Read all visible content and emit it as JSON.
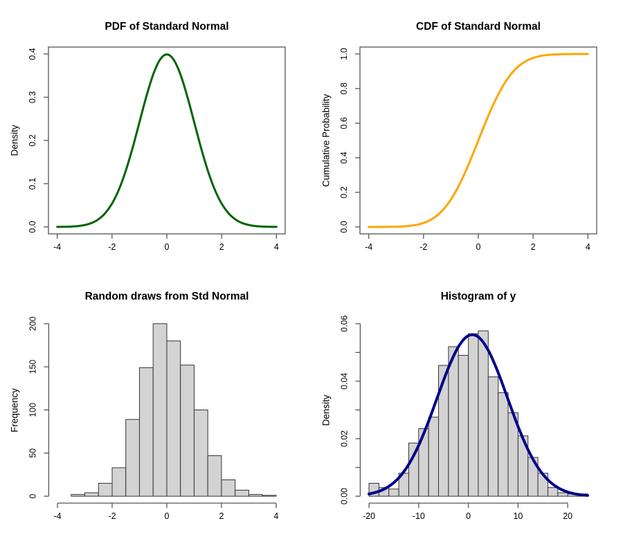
{
  "figure": {
    "layout": "2x2",
    "background": "#ffffff",
    "axis_color": "#555555",
    "text_color": "#000000"
  },
  "chart_data": [
    {
      "type": "line",
      "title": "PDF of Standard Normal",
      "xlabel": "",
      "ylabel": "Density",
      "frame": "box",
      "xlim": [
        -4,
        4
      ],
      "ylim": [
        0,
        0.4
      ],
      "xticks": {
        "values": [
          -4,
          -2,
          0,
          2,
          4
        ],
        "labels": [
          "-4",
          "-2",
          "0",
          "2",
          "4"
        ]
      },
      "yticks": {
        "values": [
          0,
          0.1,
          0.2,
          0.3,
          0.4
        ],
        "labels": [
          "0.0",
          "0.1",
          "0.2",
          "0.3",
          "0.4"
        ]
      },
      "series": [
        {
          "name": "pdf-curve",
          "color": "#006400",
          "width": 3,
          "x": [
            -4,
            -3.75,
            -3.5,
            -3.25,
            -3,
            -2.75,
            -2.5,
            -2.25,
            -2,
            -1.75,
            -1.5,
            -1.25,
            -1,
            -0.75,
            -0.5,
            -0.25,
            0,
            0.25,
            0.5,
            0.75,
            1,
            1.25,
            1.5,
            1.75,
            2,
            2.25,
            2.5,
            2.75,
            3,
            3.25,
            3.5,
            3.75,
            4
          ],
          "y": [
            0.00013,
            0.00035,
            0.00087,
            0.00203,
            0.00443,
            0.0091,
            0.01753,
            0.03174,
            0.05399,
            0.08628,
            0.12952,
            0.18265,
            0.24197,
            0.30114,
            0.35207,
            0.38667,
            0.39894,
            0.38667,
            0.35207,
            0.30114,
            0.24197,
            0.18265,
            0.12952,
            0.08628,
            0.05399,
            0.03174,
            0.01753,
            0.0091,
            0.00443,
            0.00203,
            0.00087,
            0.00035,
            0.00013
          ]
        }
      ]
    },
    {
      "type": "line",
      "title": "CDF of Standard Normal",
      "xlabel": "",
      "ylabel": "Cumulative Probability",
      "frame": "box",
      "xlim": [
        -4,
        4
      ],
      "ylim": [
        0,
        1
      ],
      "xticks": {
        "values": [
          -4,
          -2,
          0,
          2,
          4
        ],
        "labels": [
          "-4",
          "-2",
          "0",
          "2",
          "4"
        ]
      },
      "yticks": {
        "values": [
          0,
          0.2,
          0.4,
          0.6,
          0.8,
          1
        ],
        "labels": [
          "0.0",
          "0.2",
          "0.4",
          "0.6",
          "0.8",
          "1.0"
        ]
      },
      "series": [
        {
          "name": "cdf-curve",
          "color": "#FFA500",
          "width": 3,
          "x": [
            -4,
            -3.75,
            -3.5,
            -3.25,
            -3,
            -2.75,
            -2.5,
            -2.25,
            -2,
            -1.75,
            -1.5,
            -1.25,
            -1,
            -0.75,
            -0.5,
            -0.25,
            0,
            0.25,
            0.5,
            0.75,
            1,
            1.25,
            1.5,
            1.75,
            2,
            2.25,
            2.5,
            2.75,
            3,
            3.25,
            3.5,
            3.75,
            4
          ],
          "y": [
            3e-05,
            9e-05,
            0.00023,
            0.00058,
            0.00135,
            0.00298,
            0.00621,
            0.01222,
            0.02275,
            0.04006,
            0.06681,
            0.10565,
            0.15866,
            0.22663,
            0.30854,
            0.40129,
            0.5,
            0.59871,
            0.69146,
            0.77337,
            0.84134,
            0.89435,
            0.93319,
            0.95994,
            0.97725,
            0.98778,
            0.99379,
            0.99702,
            0.99865,
            0.99942,
            0.99977,
            0.99991,
            0.99997
          ]
        }
      ]
    },
    {
      "type": "bar",
      "title": "Random draws from Std Normal",
      "xlabel": "",
      "ylabel": "Frequency",
      "frame": "axes",
      "xlim": [
        -4,
        4
      ],
      "ylim": [
        0,
        200
      ],
      "xticks": {
        "values": [
          -4,
          -2,
          0,
          2,
          4
        ],
        "labels": [
          "-4",
          "-2",
          "0",
          "2",
          "4"
        ]
      },
      "yticks": {
        "values": [
          0,
          50,
          100,
          150,
          200
        ],
        "labels": [
          "0",
          "50",
          "100",
          "150",
          "200"
        ]
      },
      "bars": {
        "fill": "#d3d3d3",
        "stroke": "#333333",
        "breaks": [
          -4,
          -3.5,
          -3,
          -2.5,
          -2,
          -1.5,
          -1,
          -0.5,
          0,
          0.5,
          1,
          1.5,
          2,
          2.5,
          3,
          3.5,
          4
        ],
        "values": [
          0,
          2,
          4,
          15,
          33,
          89,
          149,
          200,
          180,
          152,
          100,
          47,
          19,
          7,
          2,
          1
        ]
      },
      "series": []
    },
    {
      "type": "bar",
      "title": "Histogram of y",
      "xlabel": "",
      "ylabel": "Density",
      "frame": "axes",
      "xlim": [
        -20,
        24
      ],
      "ylim": [
        0,
        0.06
      ],
      "xticks": {
        "values": [
          -20,
          -10,
          0,
          10,
          20
        ],
        "labels": [
          "-20",
          "-10",
          "0",
          "10",
          "20"
        ]
      },
      "yticks": {
        "values": [
          0,
          0.01,
          0.02,
          0.03,
          0.04,
          0.05,
          0.06
        ],
        "labels": [
          "0.00",
          "",
          "0.02",
          "",
          "0.04",
          "",
          "0.06"
        ]
      },
      "bars": {
        "fill": "#d3d3d3",
        "stroke": "#333333",
        "breaks": [
          -20,
          -18,
          -16,
          -14,
          -12,
          -10,
          -8,
          -6,
          -4,
          -2,
          0,
          2,
          4,
          6,
          8,
          10,
          12,
          14,
          16,
          18,
          20,
          22,
          24
        ],
        "values": [
          0.0045,
          0.003,
          0.0025,
          0.008,
          0.0185,
          0.0235,
          0.0275,
          0.0455,
          0.052,
          0.049,
          0.0565,
          0.0575,
          0.0415,
          0.036,
          0.029,
          0.021,
          0.0135,
          0.008,
          0.003,
          0.0012,
          0.0008,
          0.0008
        ]
      },
      "series": [
        {
          "name": "normal-density-curve",
          "color": "#00008B",
          "width": 4,
          "x": [
            -20,
            -18,
            -16,
            -14,
            -12,
            -10,
            -8,
            -6,
            -4,
            -2,
            0,
            2,
            4,
            6,
            8,
            10,
            12,
            14,
            16,
            18,
            20,
            22,
            24
          ],
          "y": [
            0.00077,
            0.00169,
            0.00342,
            0.00639,
            0.01107,
            0.01767,
            0.02607,
            0.03552,
            0.04471,
            0.05199,
            0.05583,
            0.05539,
            0.05076,
            0.04299,
            0.0336,
            0.02426,
            0.01619,
            0.00998,
            0.00569,
            0.00299,
            0.00145,
            0.00065,
            0.00027
          ]
        }
      ]
    }
  ]
}
